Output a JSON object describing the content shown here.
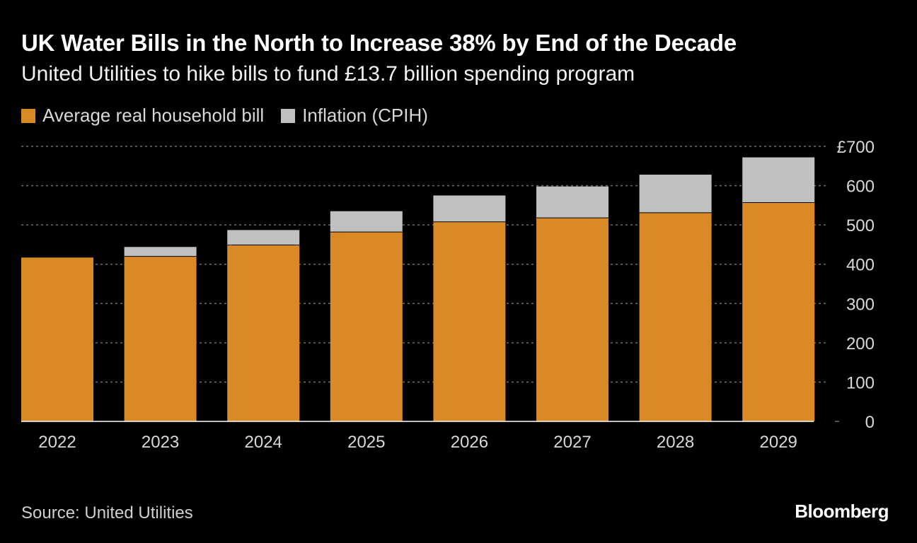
{
  "header": {
    "title": "UK Water Bills in the North to Increase 38% by End of the Decade",
    "subtitle": "United Utilities to hike bills to fund £13.7 billion spending program"
  },
  "legend": [
    {
      "label": "Average real household bill",
      "color": "#d98a26"
    },
    {
      "label": "Inflation (CPIH)",
      "color": "#c0c0c0"
    }
  ],
  "footer": {
    "source": "Source: United Utilities",
    "brand": "Bloomberg"
  },
  "colors": {
    "background": "#000000",
    "grid": "#6e6e6e",
    "tick_text": "#d8d8d8",
    "baseline": "#ffffff"
  },
  "chart_data": {
    "type": "bar",
    "stacked": true,
    "categories": [
      "2022",
      "2023",
      "2024",
      "2025",
      "2026",
      "2027",
      "2028",
      "2029"
    ],
    "series": [
      {
        "name": "Average real household bill",
        "values": [
          417,
          420,
          449,
          482,
          508,
          518,
          531,
          557
        ]
      },
      {
        "name": "Inflation (CPIH)",
        "values": [
          0,
          24,
          38,
          53,
          67,
          80,
          97,
          115
        ]
      }
    ],
    "title": "UK Water Bills in the North to Increase 38% by End of the Decade",
    "subtitle": "United Utilities to hike bills to fund £13.7 billion spending program",
    "ylim": [
      0,
      700
    ],
    "yticks": [
      0,
      100,
      200,
      300,
      400,
      500,
      600,
      700
    ],
    "ytick_labels": [
      "0",
      "100",
      "200",
      "300",
      "400",
      "500",
      "600",
      "£700"
    ],
    "grid": true,
    "y_axis_side": "right",
    "legend_position": "top-left"
  }
}
